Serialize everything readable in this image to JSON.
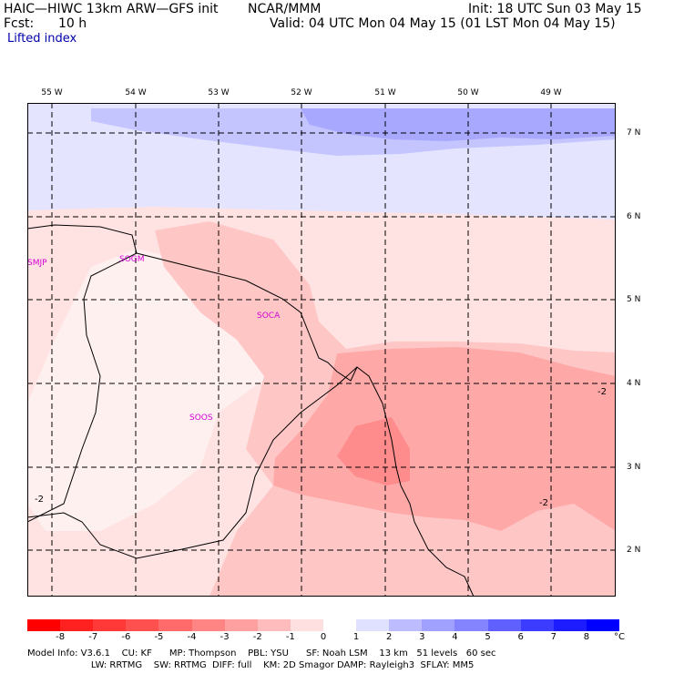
{
  "header": {
    "model_title": "HAIC—HIWC 13km ARW—GFS init",
    "org": "NCAR/MMM",
    "init": "Init: 18 UTC Sun 03 May 15",
    "fcst_label": "Fcst:",
    "fcst_value": "10 h",
    "valid": "Valid: 04 UTC Mon 04 May 15 (01 LST Mon 04 May 15)",
    "field": "Lifted index"
  },
  "map": {
    "longitude_labels": [
      "55 W",
      "54 W",
      "53 W",
      "52 W",
      "51 W",
      "50 W",
      "49 W"
    ],
    "latitude_labels": [
      "7 N",
      "6 N",
      "5 N",
      "4 N",
      "3 N",
      "2 N"
    ],
    "stations": [
      "SMJP",
      "SOGM",
      "SOCA",
      "SOOS"
    ],
    "contour_labels": [
      "-2",
      "-2",
      "-2"
    ]
  },
  "colorbar": {
    "unit": "°C",
    "ticks": [
      "-8",
      "-7",
      "-6",
      "-5",
      "-4",
      "-3",
      "-2",
      "-1",
      "0",
      "1",
      "2",
      "3",
      "4",
      "5",
      "6",
      "7",
      "8"
    ],
    "colors": [
      "#ff0000",
      "#ff2020",
      "#ff3838",
      "#ff5050",
      "#ff6a6a",
      "#ff8484",
      "#ffa0a0",
      "#ffbcbc",
      "#ffe0e0",
      "#ffffff",
      "#e0e0ff",
      "#bcbcff",
      "#a0a0ff",
      "#8484ff",
      "#6060ff",
      "#3c3cff",
      "#1c1cff",
      "#0000ff"
    ]
  },
  "footer": {
    "line1": "Model Info: V3.6.1    CU: KF      MP: Thompson    PBL: YSU      SF: Noah LSM    13 km   51 levels   60 sec",
    "line2": "                      LW: RRTMG    SW: RRTMG  DIFF: full    KM: 2D Smagor DAMP: Rayleigh3  SFLAY: MM5"
  }
}
